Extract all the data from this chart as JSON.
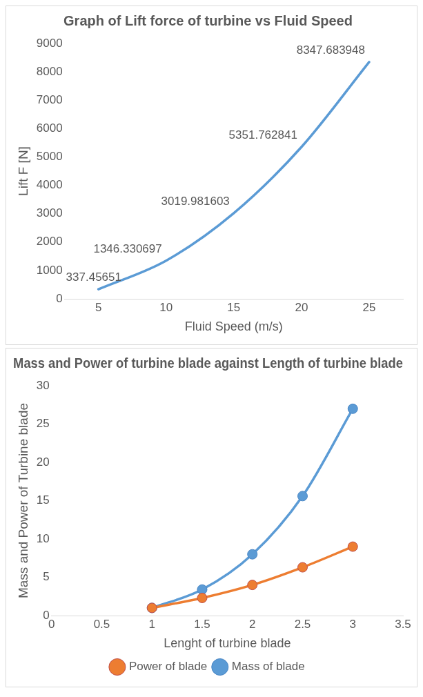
{
  "chart_data": [
    {
      "type": "line",
      "title": "Graph of Lift force of turbine vs Fluid Speed",
      "xlabel": "Fluid Speed (m/s)",
      "ylabel": "Lift F [N]",
      "categories": [
        "5",
        "10",
        "15",
        "20",
        "25"
      ],
      "values": [
        337.45651,
        1346.330697,
        3019.981603,
        5351.762841,
        8347.683948
      ],
      "color": "#5b9bd5",
      "data_labels": true,
      "marker": "none",
      "ylim": [
        0,
        9000
      ],
      "yticks": [
        0,
        1000,
        2000,
        3000,
        4000,
        5000,
        6000,
        7000,
        8000,
        9000
      ],
      "grid": false,
      "legend": false
    },
    {
      "type": "line",
      "title": "Mass and Power of turbine blade against Length of turbine blade",
      "xlabel": "Lenght of turbine blade",
      "ylabel": "Mass and Power of Turbine blade",
      "x": [
        1,
        1.5,
        2,
        2.5,
        3
      ],
      "series": [
        {
          "name": "Mass of blade",
          "color": "#5b9bd5",
          "values": [
            1,
            3.4,
            8,
            15.6,
            27
          ]
        },
        {
          "name": "Power of blade",
          "color": "#ed7d31",
          "values": [
            1,
            2.3,
            4,
            6.3,
            9
          ]
        }
      ],
      "marker": "circle",
      "legend": "bottom",
      "grid": false,
      "xlim": [
        0,
        3.5
      ],
      "xticks": [
        0,
        0.5,
        1,
        1.5,
        2,
        2.5,
        3,
        3.5
      ],
      "ylim": [
        0,
        30
      ],
      "yticks": [
        0,
        5,
        10,
        15,
        20,
        25,
        30
      ]
    }
  ]
}
